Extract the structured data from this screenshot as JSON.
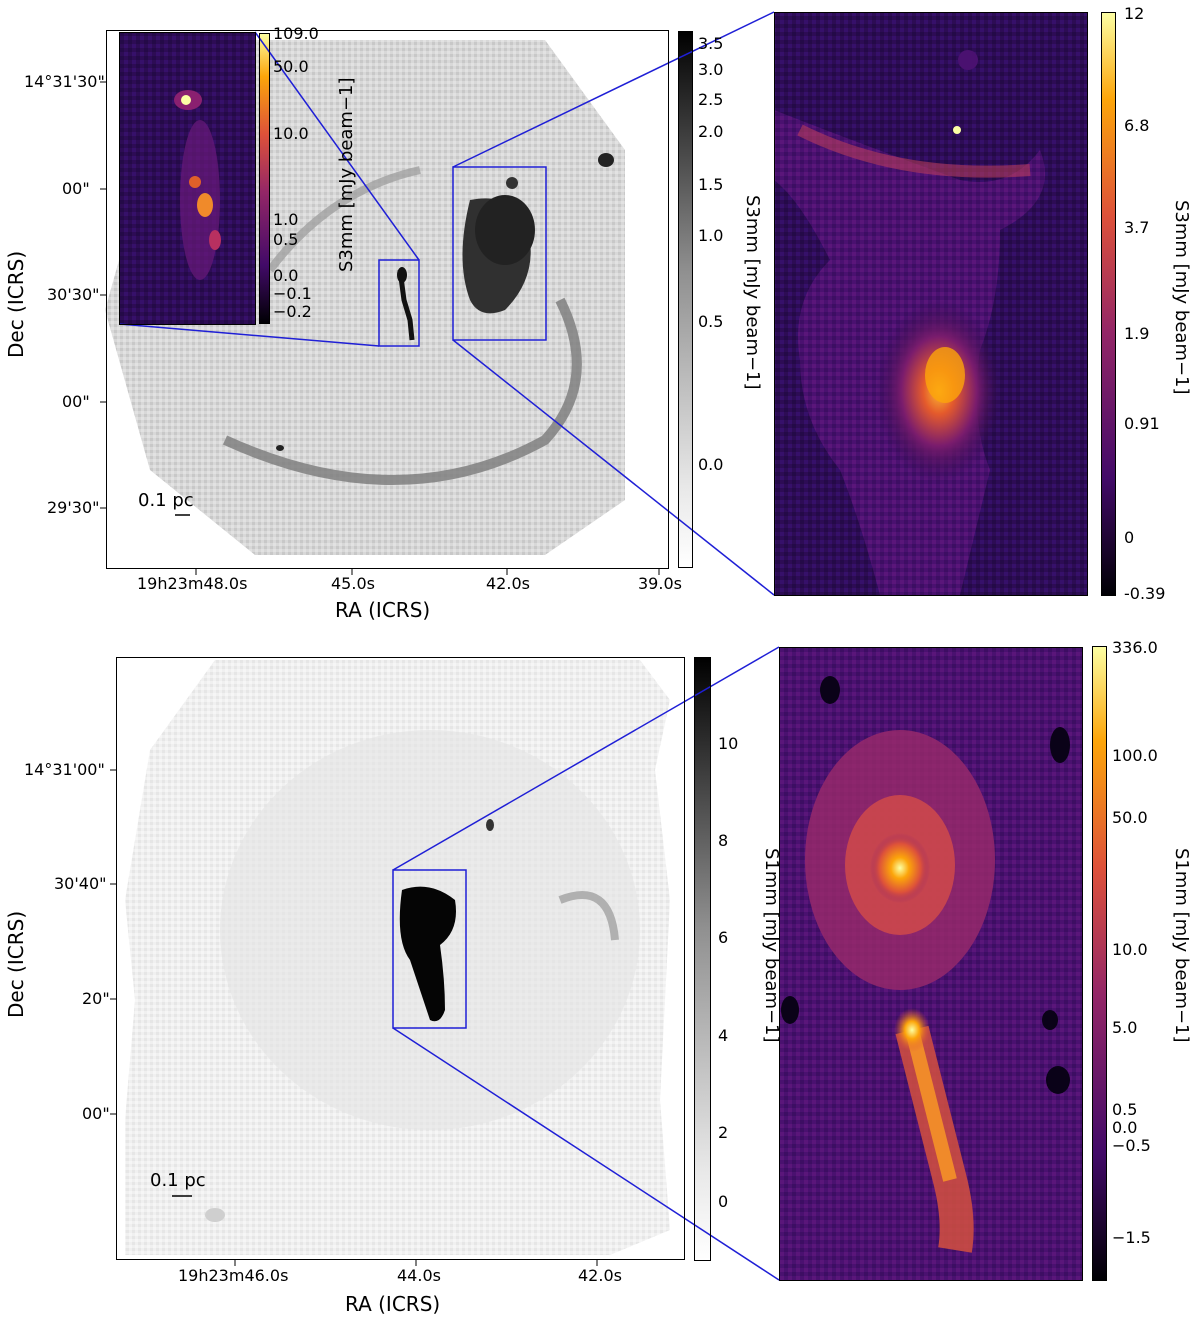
{
  "top": {
    "main": {
      "ylabel": "Dec (ICRS)",
      "xlabel": "RA (ICRS)",
      "yticks": [
        "14°31'30\"",
        "00\"",
        "30'30\"",
        "00\"",
        "29'30\""
      ],
      "xticks": [
        "19h23m48.0s",
        "45.0s",
        "42.0s",
        "39.0s"
      ],
      "scalebar": "0.1 pc",
      "colorbar": {
        "title": "S3mm [mJy beam−1]",
        "ticks": [
          "3.5",
          "3.0",
          "2.5",
          "2.0",
          "1.5",
          "1.0",
          "0.5",
          "0.0"
        ]
      }
    },
    "inset": {
      "colorbar": {
        "title": "S3mm [mJy beam−1]",
        "ticks": [
          "109.0",
          "50.0",
          "10.0",
          "1.0",
          "0.5",
          "0.0",
          "−0.1",
          "−0.2"
        ]
      }
    },
    "zoom": {
      "colorbar": {
        "title": "S3mm [mJy beam−1]",
        "ticks": [
          "12",
          "6.8",
          "3.7",
          "1.9",
          "0.91",
          "0",
          "-0.39"
        ]
      }
    }
  },
  "bottom": {
    "main": {
      "ylabel": "Dec (ICRS)",
      "xlabel": "RA (ICRS)",
      "yticks": [
        "14°31'00\"",
        "30'40\"",
        "20\"",
        "00\""
      ],
      "xticks": [
        "19h23m46.0s",
        "44.0s",
        "42.0s"
      ],
      "scalebar": "0.1 pc",
      "colorbar": {
        "title": "S1mm [mJy beam−1]",
        "ticks": [
          "10",
          "8",
          "6",
          "4",
          "2",
          "0"
        ]
      }
    },
    "zoom": {
      "colorbar": {
        "title": "S1mm [mJy beam−1]",
        "ticks": [
          "336.0",
          "100.0",
          "50.0",
          "10.0",
          "5.0",
          "0.5",
          "0.0",
          "−0.5",
          "−1.5"
        ]
      }
    }
  },
  "colors": {
    "connector": "#1f1fd6",
    "grey_high": "#111111",
    "inferno_low": "#000004",
    "inferno_mid": "#b93556",
    "inferno_high": "#fcffa4"
  }
}
